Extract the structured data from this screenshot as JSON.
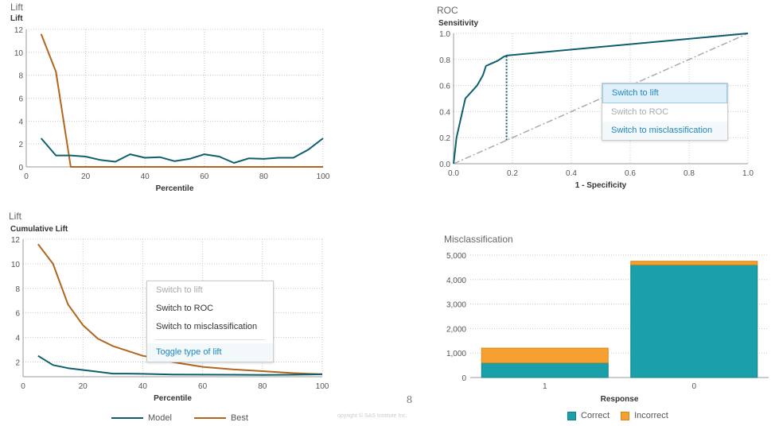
{
  "colors": {
    "model": "#0e5f6e",
    "best": "#b3651c",
    "baseline": "#aaaaaa",
    "correct": "#1aa0a8",
    "incorrect": "#f5a030",
    "grid": "#c8c8c8"
  },
  "lift": {
    "panel_title": "Lift",
    "ylabel": "Lift",
    "xlabel": "Percentile",
    "xticks": [
      "0",
      "20",
      "40",
      "60",
      "80",
      "100"
    ],
    "yticks": [
      "0",
      "2",
      "4",
      "6",
      "8",
      "10",
      "12"
    ],
    "chart_data": {
      "type": "line",
      "xlim": [
        0,
        100
      ],
      "ylim": [
        0,
        12
      ],
      "series": [
        {
          "name": "Model",
          "x": [
            5,
            10,
            15,
            20,
            25,
            30,
            35,
            40,
            45,
            50,
            55,
            60,
            65,
            70,
            75,
            80,
            85,
            90,
            95,
            100
          ],
          "values": [
            2.5,
            1.0,
            1.0,
            0.9,
            0.6,
            0.45,
            1.1,
            0.8,
            0.85,
            0.5,
            0.7,
            1.1,
            0.9,
            0.35,
            0.75,
            0.7,
            0.8,
            0.8,
            1.5,
            2.5
          ]
        },
        {
          "name": "Best",
          "x": [
            5,
            10,
            15,
            20,
            40,
            60,
            80,
            100
          ],
          "values": [
            11.6,
            8.3,
            0,
            0,
            0,
            0,
            0,
            0
          ]
        }
      ]
    }
  },
  "roc": {
    "panel_title": "ROC",
    "ylabel": "Sensitivity",
    "xlabel": "1 - Specificity",
    "xticks": [
      "0.0",
      "0.2",
      "0.4",
      "0.6",
      "0.8",
      "1.0"
    ],
    "yticks": [
      "0.0",
      "0.2",
      "0.4",
      "0.6",
      "0.8",
      "1.0"
    ],
    "chart_data": {
      "type": "line",
      "xlim": [
        0,
        1
      ],
      "ylim": [
        0,
        1
      ],
      "series": [
        {
          "name": "Model",
          "x": [
            0,
            0.005,
            0.01,
            0.02,
            0.03,
            0.04,
            0.06,
            0.08,
            0.1,
            0.11,
            0.13,
            0.15,
            0.17,
            0.18,
            1.0
          ],
          "values": [
            0,
            0.1,
            0.2,
            0.3,
            0.4,
            0.5,
            0.55,
            0.6,
            0.68,
            0.75,
            0.77,
            0.79,
            0.82,
            0.83,
            1.0
          ]
        },
        {
          "name": "Baseline",
          "x": [
            0,
            1
          ],
          "values": [
            0,
            1
          ]
        }
      ],
      "ks_line": {
        "x": 0.18,
        "y_from": 0.18,
        "y_to": 0.83
      }
    },
    "menu": [
      "Switch to lift",
      "Switch to ROC",
      "Switch to misclassification"
    ]
  },
  "cumlift": {
    "panel_title": "Lift",
    "ylabel": "Cumulative Lift",
    "xlabel": "Percentile",
    "xticks": [
      "0",
      "20",
      "40",
      "60",
      "80",
      "100"
    ],
    "yticks": [
      "2",
      "4",
      "6",
      "8",
      "10",
      "12"
    ],
    "chart_data": {
      "type": "line",
      "xlim": [
        0,
        100
      ],
      "ylim": [
        0.8,
        12
      ],
      "series": [
        {
          "name": "Model",
          "x": [
            5,
            10,
            15,
            20,
            25,
            30,
            35,
            40,
            50,
            60,
            70,
            80,
            90,
            95,
            100
          ],
          "values": [
            2.5,
            1.75,
            1.5,
            1.35,
            1.2,
            1.05,
            1.05,
            1.03,
            0.98,
            0.97,
            0.96,
            0.95,
            0.96,
            0.98,
            1.0
          ]
        },
        {
          "name": "Best",
          "x": [
            5,
            10,
            15,
            20,
            25,
            30,
            35,
            40,
            45,
            50,
            60,
            70,
            80,
            90,
            100
          ],
          "values": [
            11.6,
            10.0,
            6.7,
            5.0,
            3.9,
            3.3,
            2.9,
            2.5,
            2.3,
            2.0,
            1.6,
            1.4,
            1.25,
            1.1,
            1.0
          ]
        }
      ]
    },
    "menu": [
      "Switch to lift",
      "Switch to ROC",
      "Switch to misclassification",
      "Toggle type of lift"
    ]
  },
  "misclass": {
    "panel_title": "Misclassification",
    "xlabel": "Response",
    "yticks": [
      "0",
      "1,000",
      "2,000",
      "3,000",
      "4,000",
      "5,000"
    ],
    "chart_data": {
      "type": "bar",
      "stacked": true,
      "categories": [
        "1",
        "0"
      ],
      "ylim": [
        0,
        5000
      ],
      "series": [
        {
          "name": "Correct",
          "values": [
            600,
            4600
          ]
        },
        {
          "name": "Incorrect",
          "values": [
            600,
            150
          ]
        }
      ]
    }
  },
  "legend_left": [
    "Model",
    "Best"
  ],
  "legend_right": [
    "Correct",
    "Incorrect"
  ],
  "page_number": "8",
  "copyright": "opyright © SAS Institute Inc."
}
